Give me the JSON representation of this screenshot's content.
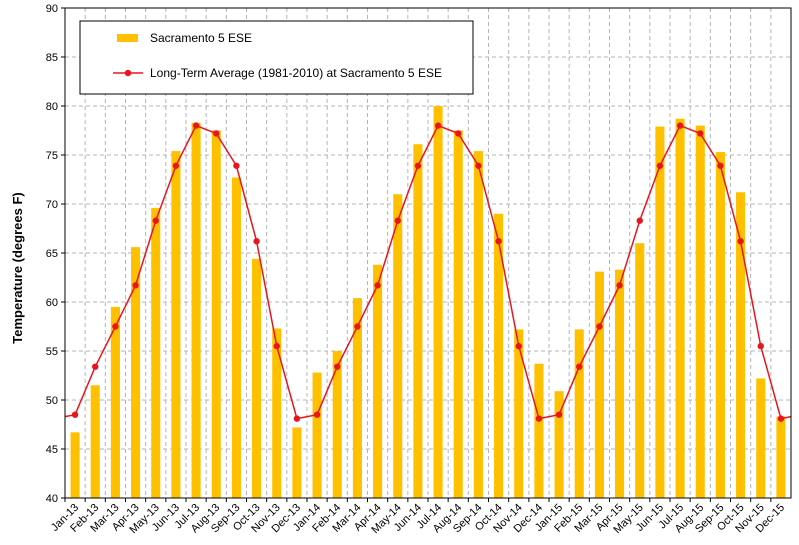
{
  "chart_data": {
    "type": "bar",
    "ylabel": "Temperature (degrees F)",
    "xlabel": "",
    "ylim": [
      40,
      90
    ],
    "yticks": [
      40,
      45,
      50,
      55,
      60,
      65,
      70,
      75,
      80,
      85,
      90
    ],
    "grid": true,
    "legend_position": "top-left",
    "categories": [
      "Jan-13",
      "Feb-13",
      "Mar-13",
      "Apr-13",
      "May-13",
      "Jun-13",
      "Jul-13",
      "Aug-13",
      "Sep-13",
      "Oct-13",
      "Nov-13",
      "Dec-13",
      "Jan-14",
      "Feb-14",
      "Mar-14",
      "Apr-14",
      "May-14",
      "Jun-14",
      "Jul-14",
      "Aug-14",
      "Sep-14",
      "Oct-14",
      "Nov-14",
      "Dec-14",
      "Jan-15",
      "Feb-15",
      "Mar-15",
      "Apr-15",
      "May-15",
      "Jun-15",
      "Jul-15",
      "Aug-15",
      "Sep-15",
      "Oct-15",
      "Nov-15",
      "Dec-15"
    ],
    "series": [
      {
        "name": "Sacramento 5 ESE",
        "kind": "bar",
        "color": "#FFC000",
        "values": [
          46.7,
          51.5,
          59.5,
          65.6,
          69.6,
          75.4,
          78.3,
          77.5,
          72.7,
          64.4,
          57.3,
          47.2,
          52.8,
          55.0,
          60.4,
          63.8,
          71.0,
          76.1,
          80.0,
          77.5,
          75.4,
          69.0,
          57.2,
          53.7,
          50.9,
          57.2,
          63.1,
          63.3,
          66.0,
          77.9,
          78.7,
          78.0,
          75.3,
          71.2,
          52.2,
          48.3
        ]
      },
      {
        "name": "Long-Term Average (1981-2010) at Sacramento 5 ESE",
        "kind": "line",
        "color": "#E8161C",
        "values": [
          48.5,
          53.4,
          57.5,
          61.7,
          68.3,
          73.9,
          78.0,
          77.2,
          73.9,
          66.2,
          55.5,
          48.1,
          48.5,
          53.4,
          57.5,
          61.7,
          68.3,
          73.9,
          78.0,
          77.2,
          73.9,
          66.2,
          55.5,
          48.1,
          48.5,
          53.4,
          57.5,
          61.7,
          68.3,
          73.9,
          78.0,
          77.2,
          73.9,
          66.2,
          55.5,
          48.1
        ]
      }
    ]
  }
}
